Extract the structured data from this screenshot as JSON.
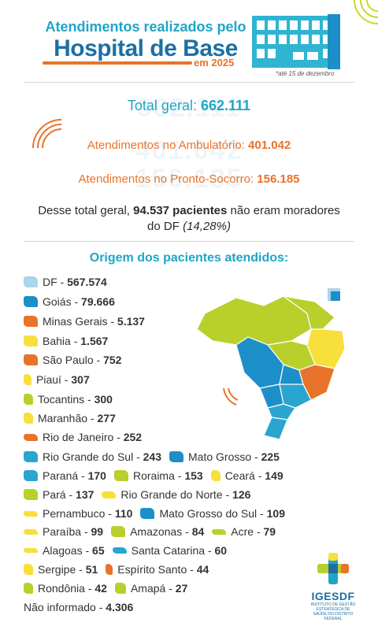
{
  "header": {
    "line1": "Atendimentos realizados pelo",
    "line2": "Hospital de Base",
    "year": "em 2025",
    "note": "*até 15 de dezembro"
  },
  "totals": {
    "total_label": "Total geral:",
    "total_value": "662.111",
    "amb_label": "Atendimentos no Ambulatório:",
    "amb_value": "401.042",
    "ps_label": "Atendimentos no Pronto-Socorro:",
    "ps_value": "156.185"
  },
  "non_residents": {
    "prefix": "Desse total geral,",
    "value": "94.537 pacientes",
    "suffix": "não eram moradores do DF",
    "percent": "(14,28%)"
  },
  "origin_title": "Origem dos pacientes atendidos:",
  "states": [
    {
      "name": "DF",
      "value": "567.574",
      "color": "#a9d6ea"
    },
    {
      "name": "Goiás",
      "value": "79.666",
      "color": "#1d8fc8"
    },
    {
      "name": "Minas Gerais",
      "value": "5.137",
      "color": "#e8732a"
    },
    {
      "name": "Bahia",
      "value": "1.567",
      "color": "#f7e03c"
    },
    {
      "name": "São Paulo",
      "value": "752",
      "color": "#e8732a"
    },
    {
      "name": "Piauí",
      "value": "307",
      "color": "#f7e03c"
    },
    {
      "name": "Tocantins",
      "value": "300",
      "color": "#b9cf2b"
    },
    {
      "name": "Maranhão",
      "value": "277",
      "color": "#f7e03c"
    },
    {
      "name": "Rio de Janeiro",
      "value": "252",
      "color": "#e8732a"
    },
    {
      "name": "Rio Grande do Sul",
      "value": "243",
      "color": "#2aa5cf"
    },
    {
      "name": "Mato Grosso",
      "value": "225",
      "color": "#1d8fc8"
    },
    {
      "name": "Paraná",
      "value": "170",
      "color": "#2aa5cf"
    },
    {
      "name": "Roraima",
      "value": "153",
      "color": "#b9cf2b"
    },
    {
      "name": "Ceará",
      "value": "149",
      "color": "#f7e03c"
    },
    {
      "name": "Pará",
      "value": "137",
      "color": "#b9cf2b"
    },
    {
      "name": "Rio Grande do Norte",
      "value": "126",
      "color": "#f7e03c"
    },
    {
      "name": "Pernambuco",
      "value": "110",
      "color": "#f7e03c"
    },
    {
      "name": "Mato Grosso do Sul",
      "value": "109",
      "color": "#1d8fc8"
    },
    {
      "name": "Paraíba",
      "value": "99",
      "color": "#f7e03c"
    },
    {
      "name": "Amazonas",
      "value": "84",
      "color": "#b9cf2b"
    },
    {
      "name": "Acre",
      "value": "79",
      "color": "#b9cf2b"
    },
    {
      "name": "Alagoas",
      "value": "65",
      "color": "#f7e03c"
    },
    {
      "name": "Santa Catarina",
      "value": "60",
      "color": "#2aa5cf"
    },
    {
      "name": "Sergipe",
      "value": "51",
      "color": "#f7e03c"
    },
    {
      "name": "Espírito Santo",
      "value": "44",
      "color": "#e8732a"
    },
    {
      "name": "Rondônia",
      "value": "42",
      "color": "#b9cf2b"
    },
    {
      "name": "Amapá",
      "value": "27",
      "color": "#b9cf2b"
    }
  ],
  "not_informed": {
    "label": "Não informado",
    "value": "4.306"
  },
  "logo": {
    "name": "IGESDF",
    "sub": "INSTITUTO DE GESTÃO ESTRATÉGICA DE SAÚDE DO DISTRITO FEDERAL"
  }
}
